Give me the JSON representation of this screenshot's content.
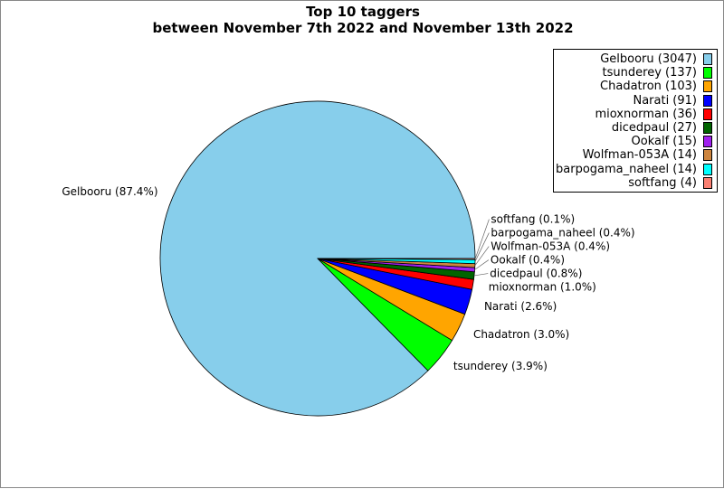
{
  "chart_data": {
    "type": "pie",
    "title": "Top 10 taggers\nbetween November 7th 2022 and November 13th 2022",
    "title_lines": [
      "Top 10 taggers",
      "between November 7th 2022 and November 13th 2022"
    ],
    "legend_position": "top-right",
    "slices": [
      {
        "name": "Gelbooru",
        "value": 3047,
        "legend": "Gelbooru (3047)",
        "label": "Gelbooru (87.4%)",
        "color": "#87ceeb"
      },
      {
        "name": "tsunderey",
        "value": 137,
        "legend": "tsunderey (137)",
        "label": "tsunderey (3.9%)",
        "color": "#00ff00"
      },
      {
        "name": "Chadatron",
        "value": 103,
        "legend": "Chadatron (103)",
        "label": "Chadatron (3.0%)",
        "color": "#ffa500"
      },
      {
        "name": "Narati",
        "value": 91,
        "legend": "Narati (91)",
        "label": "Narati (2.6%)",
        "color": "#0000ff"
      },
      {
        "name": "mioxnorman",
        "value": 36,
        "legend": "mioxnorman (36)",
        "label": "mioxnorman (1.0%)",
        "color": "#ff0000"
      },
      {
        "name": "dicedpaul",
        "value": 27,
        "legend": "dicedpaul (27)",
        "label": "dicedpaul (0.8%)",
        "color": "#006400"
      },
      {
        "name": "Ookalf",
        "value": 15,
        "legend": "Ookalf (15)",
        "label": "Ookalf (0.4%)",
        "color": "#a020f0"
      },
      {
        "name": "Wolfman-053A",
        "value": 14,
        "legend": "Wolfman-053A (14)",
        "label": "Wolfman-053A (0.4%)",
        "color": "#cd853f"
      },
      {
        "name": "barpogama_naheel",
        "value": 14,
        "legend": "barpogama_naheel (14)",
        "label": "barpogama_naheel (0.4%)",
        "color": "#00ffff"
      },
      {
        "name": "softfang",
        "value": 4,
        "legend": "softfang (4)",
        "label": "softfang (0.1%)",
        "color": "#fa8072"
      }
    ]
  }
}
